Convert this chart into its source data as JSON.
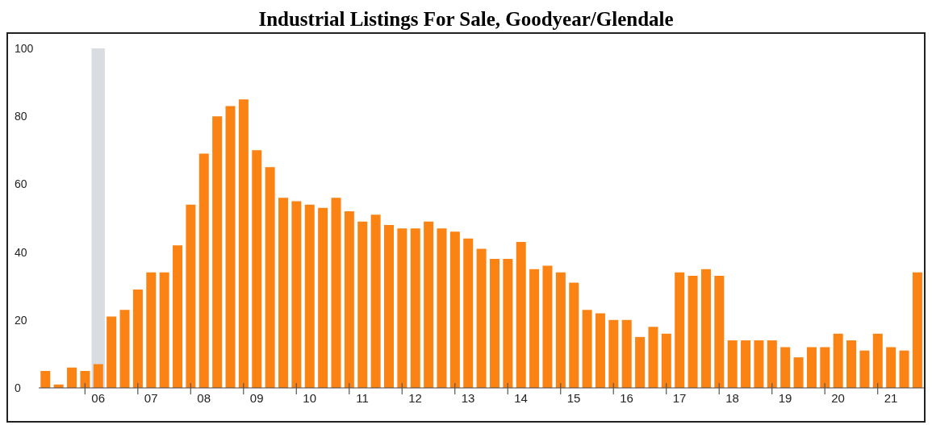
{
  "chart_data": {
    "type": "bar",
    "title": "Industrial Listings For Sale, Goodyear/Glendale",
    "categories": [
      null,
      null,
      null,
      null,
      "06",
      null,
      null,
      null,
      "07",
      null,
      null,
      null,
      "08",
      null,
      null,
      null,
      "09",
      null,
      null,
      null,
      "10",
      null,
      null,
      null,
      "11",
      null,
      null,
      null,
      "12",
      null,
      null,
      null,
      "13",
      null,
      null,
      null,
      "14",
      null,
      null,
      null,
      "15",
      null,
      null,
      null,
      "16",
      null,
      null,
      null,
      "17",
      null,
      null,
      null,
      "18",
      null,
      null,
      null,
      "19",
      null,
      null,
      null,
      "20",
      null,
      null,
      null,
      "21",
      null,
      null
    ],
    "values": [
      5,
      1,
      6,
      5,
      7,
      21,
      23,
      29,
      34,
      34,
      42,
      54,
      69,
      80,
      83,
      85,
      70,
      65,
      56,
      55,
      54,
      53,
      56,
      52,
      49,
      51,
      48,
      47,
      47,
      49,
      47,
      46,
      44,
      41,
      38,
      38,
      43,
      35,
      36,
      34,
      31,
      23,
      22,
      20,
      20,
      15,
      18,
      16,
      34,
      33,
      35,
      33,
      14,
      14,
      14,
      14,
      12,
      9,
      12,
      12,
      16,
      14,
      11,
      16,
      12,
      11,
      34
    ],
    "color": "#fb8313",
    "ylim": [
      0,
      100
    ],
    "yticks": [
      0,
      20,
      40,
      60,
      80,
      100
    ],
    "bands": [
      {
        "axis": "x",
        "from": "06",
        "to": "06",
        "color": "#d9dce1"
      }
    ]
  }
}
